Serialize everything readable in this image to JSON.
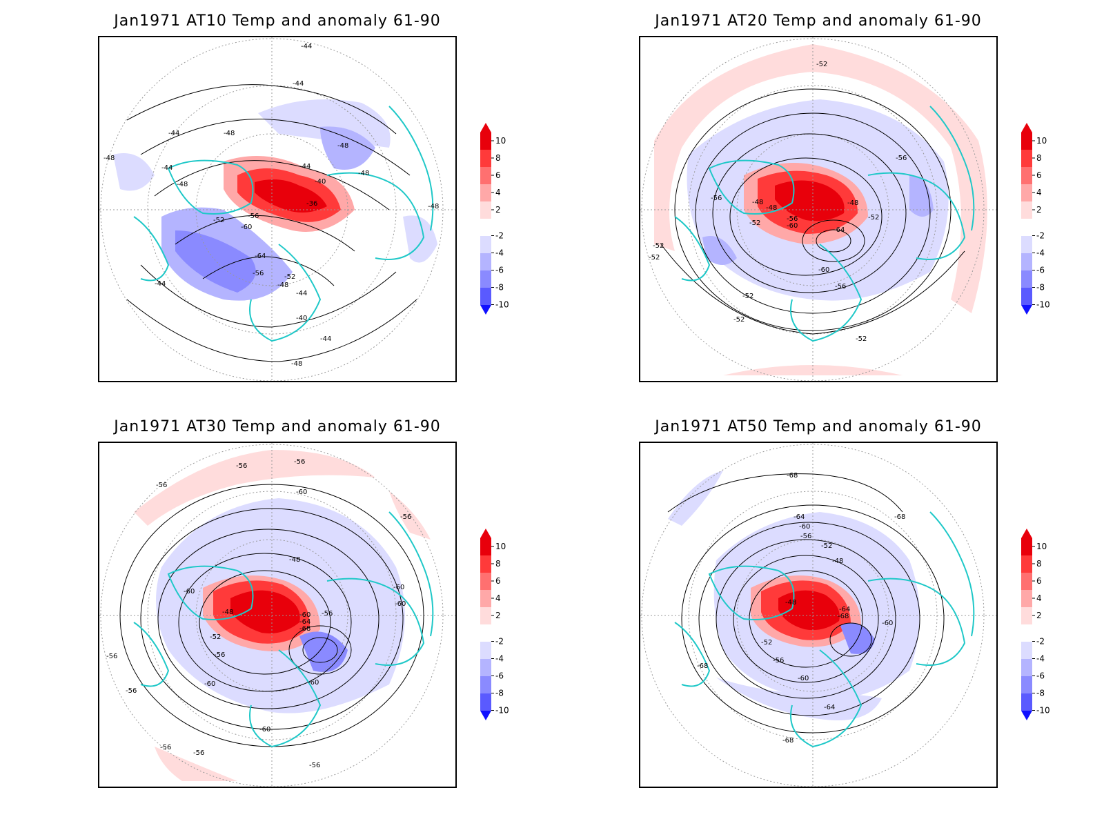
{
  "panels": [
    {
      "id": "at10",
      "title": "Jan1971 AT10 Temp and anomaly 61-90",
      "contour_labels": [
        "-44",
        "-44",
        "-44",
        "-48",
        "-44",
        "-40",
        "-48",
        "-48",
        "-48",
        "-44",
        "-48",
        "-52",
        "-60",
        "-56",
        "-36",
        "-64",
        "-56",
        "-52",
        "-48",
        "-44",
        "-40",
        "-44",
        "-44",
        "-48",
        "-48"
      ]
    },
    {
      "id": "at20",
      "title": "Jan1971 AT20 Temp and anomaly 61-90",
      "contour_labels": [
        "-52",
        "-56",
        "-52",
        "-52",
        "-56",
        "-48",
        "-52",
        "-56",
        "-60",
        "-64",
        "-48",
        "-52",
        "-60",
        "-56",
        "-52",
        "-52",
        "-52",
        "-48"
      ]
    },
    {
      "id": "at30",
      "title": "Jan1971 AT30 Temp and anomaly 61-90",
      "contour_labels": [
        "-56",
        "-56",
        "-56",
        "-60",
        "-56",
        "-48",
        "-60",
        "-60",
        "-60",
        "-48",
        "-60",
        "-56",
        "-64",
        "-68",
        "-52",
        "-56",
        "-56",
        "-56",
        "-60",
        "-60",
        "-60",
        "-56",
        "-56",
        "-56"
      ]
    },
    {
      "id": "at50",
      "title": "Jan1971 AT50 Temp and anomaly 61-90",
      "contour_labels": [
        "-68",
        "-68",
        "-64",
        "-60",
        "-56",
        "-52",
        "-48",
        "-48",
        "-64",
        "-68",
        "-60",
        "-52",
        "-56",
        "-68",
        "-60",
        "-64",
        "-68"
      ]
    }
  ],
  "colorbar": {
    "ticks": [
      "10",
      "8",
      "6",
      "4",
      "2",
      "-2",
      "-4",
      "-6",
      "-8",
      "-10"
    ],
    "colors": {
      "r10": "#e8000b",
      "r8": "#ff3a3a",
      "r6": "#ff7070",
      "r4": "#ffa8a8",
      "r2": "#ffdcdc",
      "zero": "#ffffff",
      "b2": "#dcdcff",
      "b4": "#b4b4ff",
      "b6": "#8a8aff",
      "b8": "#5a5aff",
      "b10": "#1010ff"
    }
  },
  "colors": {
    "coastline": "#1fc8c8",
    "contour": "#000000",
    "grid": "#999999"
  }
}
